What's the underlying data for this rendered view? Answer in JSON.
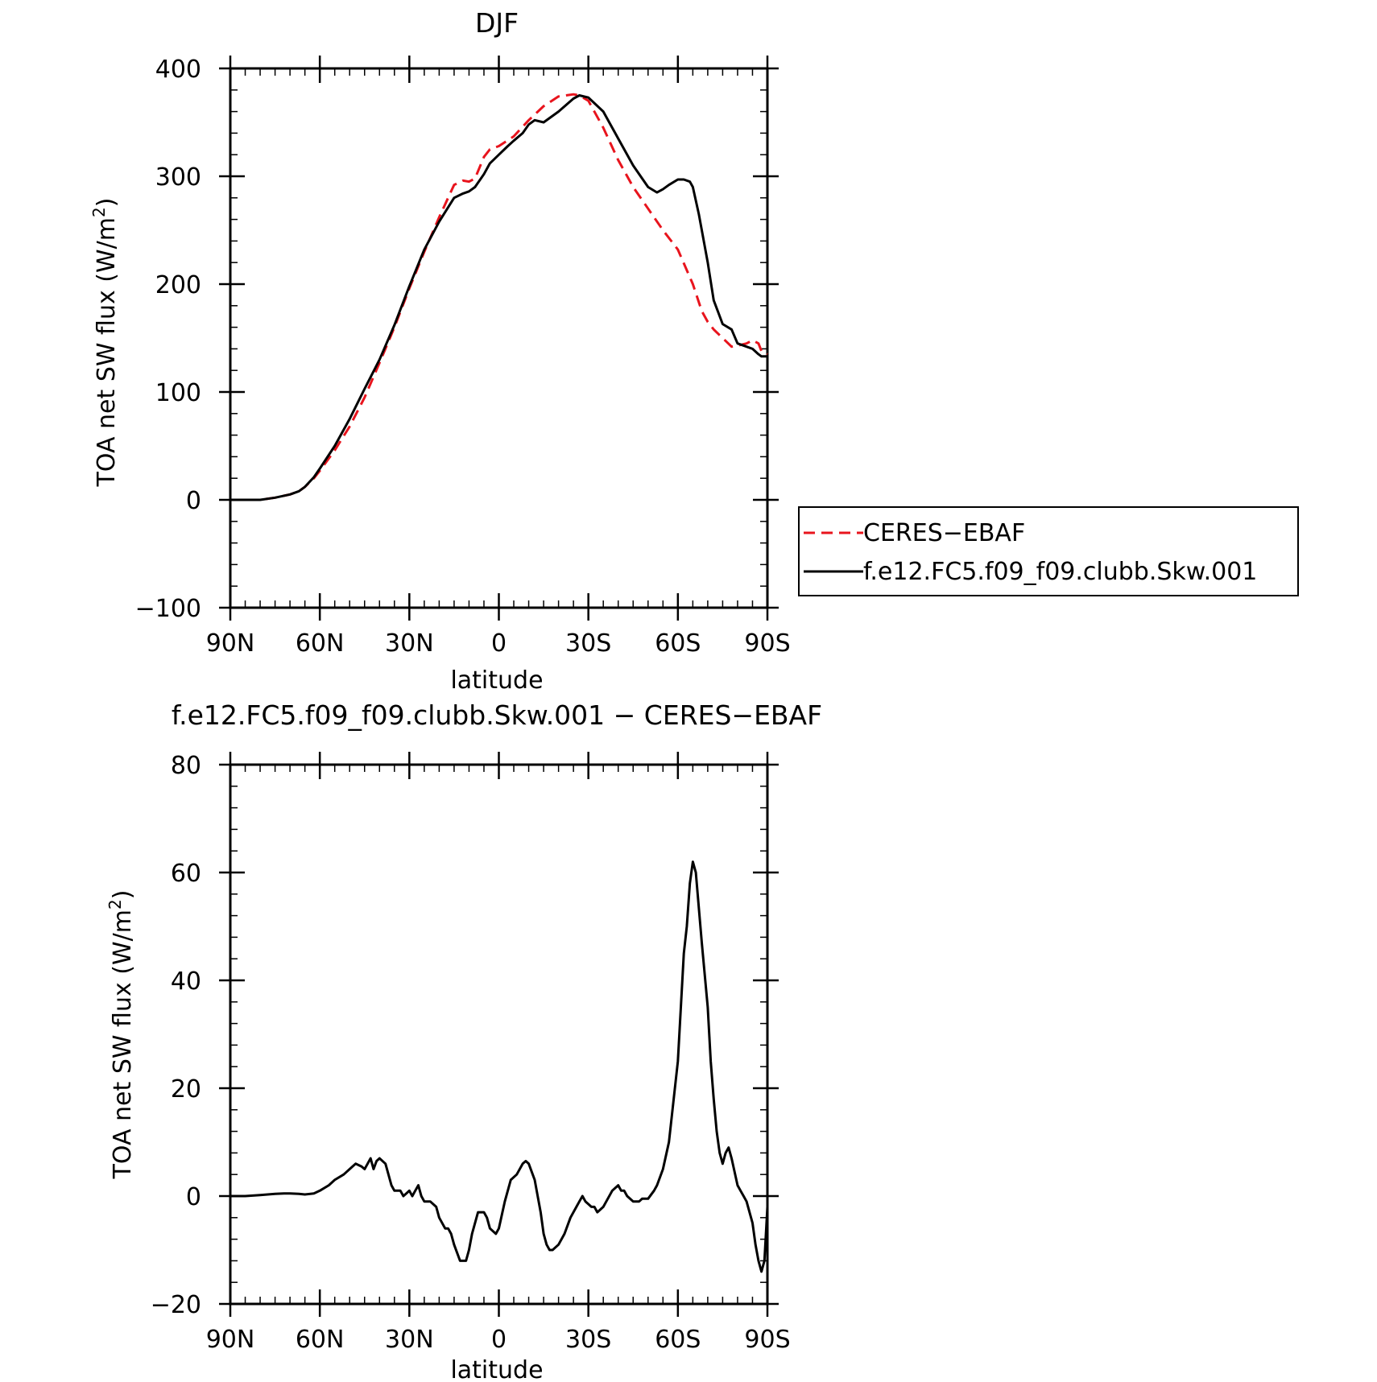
{
  "chart_data": [
    {
      "type": "line",
      "title": "DJF",
      "xlabel": "latitude",
      "ylabel": "TOA net SW flux (W/m",
      "ylabel_superscript": "2",
      "ylabel_tail": ")",
      "xlim": [
        90,
        -90
      ],
      "ylim": [
        -100,
        400
      ],
      "x_ticks": [
        90,
        60,
        30,
        0,
        -30,
        -60,
        -90
      ],
      "x_tick_labels": [
        "90N",
        "60N",
        "30N",
        "0",
        "30S",
        "60S",
        "90S"
      ],
      "y_ticks": [
        -100,
        0,
        100,
        200,
        300,
        400
      ],
      "y_tick_labels": [
        "−100",
        "0",
        "100",
        "200",
        "300",
        "400"
      ],
      "legend": {
        "placement": "right-middle"
      },
      "series": [
        {
          "name": "CERES−EBAF",
          "color": "#e8141d",
          "dash": "dashed",
          "x": [
            90,
            85,
            80,
            75,
            70,
            67,
            65,
            62,
            60,
            55,
            50,
            45,
            40,
            35,
            30,
            25,
            20,
            15,
            12,
            10,
            8,
            5,
            3,
            0,
            -5,
            -10,
            -15,
            -20,
            -25,
            -27,
            -30,
            -35,
            -40,
            -45,
            -50,
            -55,
            -60,
            -65,
            -68,
            -70,
            -72,
            -75,
            -78,
            -80,
            -83,
            -85,
            -87,
            -88,
            -90
          ],
          "y": [
            0,
            0,
            0,
            2,
            5,
            8,
            12,
            20,
            27,
            46,
            68,
            95,
            127,
            160,
            196,
            230,
            262,
            292,
            296,
            295,
            298,
            318,
            325,
            328,
            337,
            352,
            365,
            374,
            376,
            375,
            370,
            345,
            315,
            290,
            270,
            250,
            232,
            200,
            175,
            165,
            158,
            150,
            142,
            143,
            145,
            148,
            145,
            138,
            135
          ]
        },
        {
          "name": "f.e12.FC5.f09_f09.clubb.Skw.001",
          "color": "#000000",
          "dash": "solid",
          "x": [
            90,
            85,
            80,
            75,
            70,
            67,
            65,
            62,
            60,
            55,
            50,
            45,
            40,
            35,
            30,
            25,
            20,
            15,
            12,
            10,
            8,
            5,
            3,
            0,
            -3,
            -5,
            -8,
            -10,
            -12,
            -15,
            -20,
            -25,
            -27,
            -30,
            -35,
            -40,
            -45,
            -50,
            -53,
            -55,
            -57,
            -60,
            -62,
            -64,
            -65,
            -67,
            -70,
            -72,
            -75,
            -78,
            -80,
            -83,
            -85,
            -87,
            -88,
            -90
          ],
          "y": [
            0,
            0,
            0,
            2,
            5,
            8,
            12,
            21,
            29,
            50,
            75,
            103,
            130,
            162,
            198,
            232,
            258,
            280,
            284,
            286,
            290,
            302,
            312,
            320,
            328,
            333,
            340,
            348,
            352,
            350,
            360,
            372,
            375,
            373,
            360,
            335,
            310,
            290,
            285,
            288,
            292,
            297,
            297,
            295,
            290,
            265,
            220,
            185,
            163,
            158,
            145,
            142,
            140,
            135,
            133,
            133
          ]
        }
      ]
    },
    {
      "type": "line",
      "title": "f.e12.FC5.f09_f09.clubb.Skw.001 − CERES−EBAF",
      "xlabel": "latitude",
      "ylabel": "TOA net SW flux (W/m",
      "ylabel_superscript": "2",
      "ylabel_tail": ")",
      "xlim": [
        90,
        -90
      ],
      "ylim": [
        -20,
        80
      ],
      "x_ticks": [
        90,
        60,
        30,
        0,
        -30,
        -60,
        -90
      ],
      "x_tick_labels": [
        "90N",
        "60N",
        "30N",
        "0",
        "30S",
        "60S",
        "90S"
      ],
      "y_ticks": [
        -20,
        0,
        20,
        40,
        60,
        80
      ],
      "y_tick_labels": [
        "−20",
        "0",
        "20",
        "40",
        "60",
        "80"
      ],
      "series": [
        {
          "name": "",
          "color": "#000000",
          "dash": "solid",
          "x": [
            90,
            85,
            80,
            75,
            72,
            70,
            67,
            65,
            62,
            60,
            57,
            55,
            52,
            50,
            48,
            46,
            45,
            44,
            43,
            42,
            41,
            40,
            38,
            36,
            35,
            33,
            32,
            31,
            30,
            29,
            28,
            27,
            26,
            25,
            23,
            21,
            20,
            18,
            17,
            16,
            15,
            13,
            12,
            11,
            10,
            9,
            7,
            5,
            4,
            3,
            1,
            0,
            -2,
            -4,
            -6,
            -8,
            -9,
            -10,
            -12,
            -14,
            -15,
            -16,
            -17,
            -18,
            -20,
            -22,
            -24,
            -26,
            -27,
            -28,
            -29,
            -30,
            -31,
            -32,
            -33,
            -35,
            -36,
            -38,
            -40,
            -41,
            -42,
            -43,
            -45,
            -47,
            -48,
            -50,
            -52,
            -53,
            -55,
            -57,
            -58,
            -60,
            -61,
            -62,
            -63,
            -64,
            -65,
            -66,
            -68,
            -70,
            -71,
            -72,
            -73,
            -74,
            -75,
            -76,
            -77,
            -78,
            -80,
            -81,
            -82,
            -83,
            -85,
            -86,
            -87,
            -88,
            -89,
            -90
          ],
          "y": [
            0,
            0,
            0.2,
            0.4,
            0.5,
            0.5,
            0.4,
            0.3,
            0.5,
            1,
            2,
            3,
            4,
            5,
            6,
            5.5,
            5,
            6,
            7,
            5,
            6.5,
            7,
            6,
            2,
            1,
            1,
            0,
            0.5,
            1,
            0,
            1,
            2,
            0,
            -1,
            -1,
            -2,
            -4,
            -6,
            -6,
            -7,
            -9,
            -12,
            -12,
            -12,
            -10,
            -7,
            -3,
            -3,
            -4,
            -6,
            -7,
            -6,
            -1,
            3,
            4,
            6,
            6.5,
            6,
            3,
            -3,
            -7,
            -9,
            -10,
            -10,
            -9,
            -7,
            -4,
            -2,
            -1,
            0,
            -1,
            -1.5,
            -2,
            -2,
            -3,
            -2,
            -1,
            1,
            2,
            1,
            1,
            0,
            -1,
            -1,
            -0.5,
            -0.5,
            1,
            2,
            5,
            10,
            15,
            25,
            35,
            45,
            50,
            58,
            62,
            60,
            47,
            35,
            25,
            18,
            12,
            8,
            6,
            8,
            9,
            7,
            2,
            1,
            0,
            -1,
            -5,
            -9,
            -12,
            -14,
            -12,
            -2
          ]
        }
      ]
    }
  ]
}
